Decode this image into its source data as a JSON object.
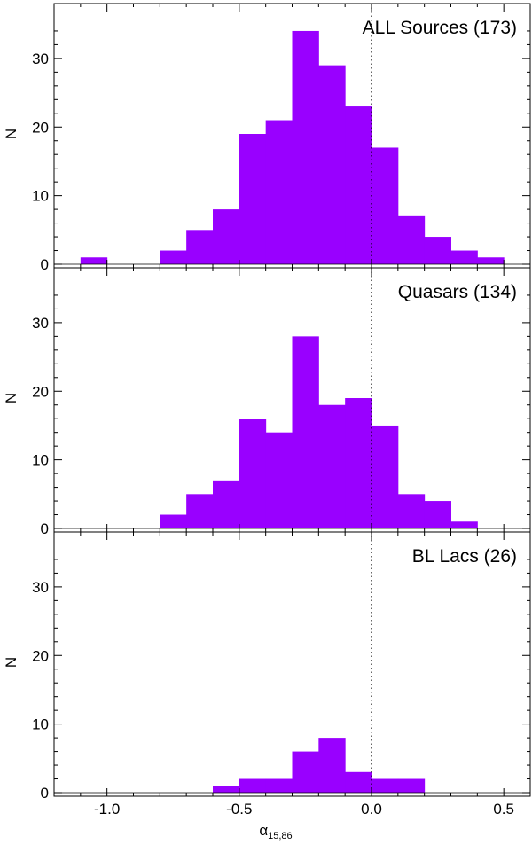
{
  "chart_data": {
    "type": "bar",
    "xlabel": "α",
    "xlabel_subscript": "15,86",
    "xlim": [
      -1.2,
      0.6
    ],
    "x_tick_labels": [
      "-1.0",
      "-0.5",
      "0.0",
      "0.5"
    ],
    "x_tick_values": [
      -1.0,
      -0.5,
      0.0,
      0.5
    ],
    "bin_width": 0.1,
    "reference_line_x": 0.0,
    "bar_color": "#9900ff",
    "panels": [
      {
        "title": "ALL Sources (173)",
        "ylabel": "N",
        "ylim": [
          0,
          38
        ],
        "y_tick_values": [
          0,
          10,
          20,
          30
        ],
        "y_tick_labels": [
          "0",
          "10",
          "20",
          "30"
        ],
        "bin_starts": [
          -1.1,
          -1.0,
          -0.9,
          -0.8,
          -0.7,
          -0.6,
          -0.5,
          -0.4,
          -0.3,
          -0.2,
          -0.1,
          0.0,
          0.1,
          0.2,
          0.3,
          0.4
        ],
        "values": [
          1,
          0,
          0,
          2,
          5,
          8,
          19,
          21,
          34,
          29,
          23,
          17,
          7,
          4,
          2,
          1
        ]
      },
      {
        "title": "Quasars (134)",
        "ylabel": "N",
        "ylim": [
          0,
          38
        ],
        "y_tick_values": [
          0,
          10,
          20,
          30
        ],
        "y_tick_labels": [
          "0",
          "10",
          "20",
          "30"
        ],
        "bin_starts": [
          -0.8,
          -0.7,
          -0.6,
          -0.5,
          -0.4,
          -0.3,
          -0.2,
          -0.1,
          0.0,
          0.1,
          0.2,
          0.3
        ],
        "values": [
          2,
          5,
          7,
          16,
          14,
          28,
          18,
          19,
          15,
          5,
          4,
          1
        ]
      },
      {
        "title": "BL Lacs (26)",
        "ylabel": "N",
        "ylim": [
          0,
          38
        ],
        "y_tick_values": [
          0,
          10,
          20,
          30
        ],
        "y_tick_labels": [
          "0",
          "10",
          "20",
          "30"
        ],
        "bin_starts": [
          -0.6,
          -0.5,
          -0.4,
          -0.3,
          -0.2,
          -0.1,
          0.0,
          0.1
        ],
        "values": [
          1,
          2,
          2,
          6,
          8,
          3,
          2,
          2
        ]
      }
    ]
  }
}
